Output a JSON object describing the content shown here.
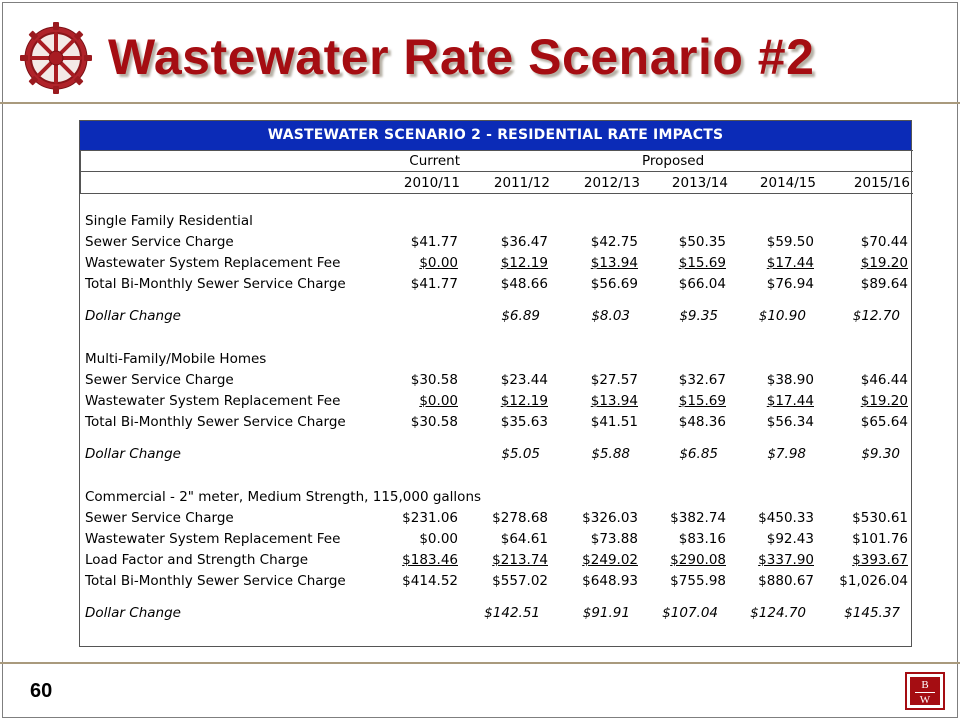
{
  "slide": {
    "title": "Wastewater Rate Scenario #2",
    "page_number": "60",
    "logo": {
      "top_letter": "B",
      "bottom_letter": "W"
    }
  },
  "colors": {
    "title": "#a50d12",
    "table_header_bg": "#0b2bb7",
    "rule": "#a99a7d"
  },
  "icons": {
    "gear": "gear-icon",
    "logo": "bw-logo"
  },
  "table": {
    "title": "WASTEWATER SCENARIO 2 - RESIDENTIAL RATE IMPACTS",
    "group_current": "Current",
    "group_proposed": "Proposed",
    "years": [
      "2010/11",
      "2011/12",
      "2012/13",
      "2013/14",
      "2014/15",
      "2015/16"
    ],
    "sections": [
      {
        "heading": "Single Family Residential",
        "rows": [
          {
            "label": "Sewer Service Charge",
            "values": [
              "$41.77",
              "$36.47",
              "$42.75",
              "$50.35",
              "$59.50",
              "$70.44"
            ]
          },
          {
            "label": "Wastewater System Replacement Fee",
            "values": [
              "$0.00",
              "$12.19",
              "$13.94",
              "$15.69",
              "$17.44",
              "$19.20"
            ]
          },
          {
            "label": "Total Bi-Monthly Sewer Service Charge",
            "values": [
              "$41.77",
              "$48.66",
              "$56.69",
              "$66.04",
              "$76.94",
              "$89.64"
            ]
          }
        ],
        "change": {
          "label": "Dollar Change",
          "values": [
            "",
            "$6.89",
            "$8.03",
            "$9.35",
            "$10.90",
            "$12.70"
          ]
        }
      },
      {
        "heading": "Multi-Family/Mobile Homes",
        "rows": [
          {
            "label": "Sewer Service Charge",
            "values": [
              "$30.58",
              "$23.44",
              "$27.57",
              "$32.67",
              "$38.90",
              "$46.44"
            ]
          },
          {
            "label": "Wastewater System Replacement Fee",
            "values": [
              "$0.00",
              "$12.19",
              "$13.94",
              "$15.69",
              "$17.44",
              "$19.20"
            ]
          },
          {
            "label": "Total Bi-Monthly Sewer Service Charge",
            "values": [
              "$30.58",
              "$35.63",
              "$41.51",
              "$48.36",
              "$56.34",
              "$65.64"
            ]
          }
        ],
        "change": {
          "label": "Dollar Change",
          "values": [
            "",
            "$5.05",
            "$5.88",
            "$6.85",
            "$7.98",
            "$9.30"
          ]
        }
      },
      {
        "heading": "Commercial - 2\" meter, Medium Strength, 115,000 gallons",
        "rows": [
          {
            "label": "Sewer Service Charge",
            "values": [
              "$231.06",
              "$278.68",
              "$326.03",
              "$382.74",
              "$450.33",
              "$530.61"
            ]
          },
          {
            "label": "Wastewater System Replacement Fee",
            "values": [
              "$0.00",
              "$64.61",
              "$73.88",
              "$83.16",
              "$92.43",
              "$101.76"
            ]
          },
          {
            "label": "Load Factor and Strength Charge",
            "values": [
              "$183.46",
              "$213.74",
              "$249.02",
              "$290.08",
              "$337.90",
              "$393.67"
            ]
          },
          {
            "label": "Total Bi-Monthly Sewer Service Charge",
            "values": [
              "$414.52",
              "$557.02",
              "$648.93",
              "$755.98",
              "$880.67",
              "$1,026.04"
            ]
          }
        ],
        "change": {
          "label": "Dollar Change",
          "values": [
            "",
            "$142.51",
            "$91.91",
            "$107.04",
            "$124.70",
            "$145.37"
          ]
        }
      }
    ]
  }
}
